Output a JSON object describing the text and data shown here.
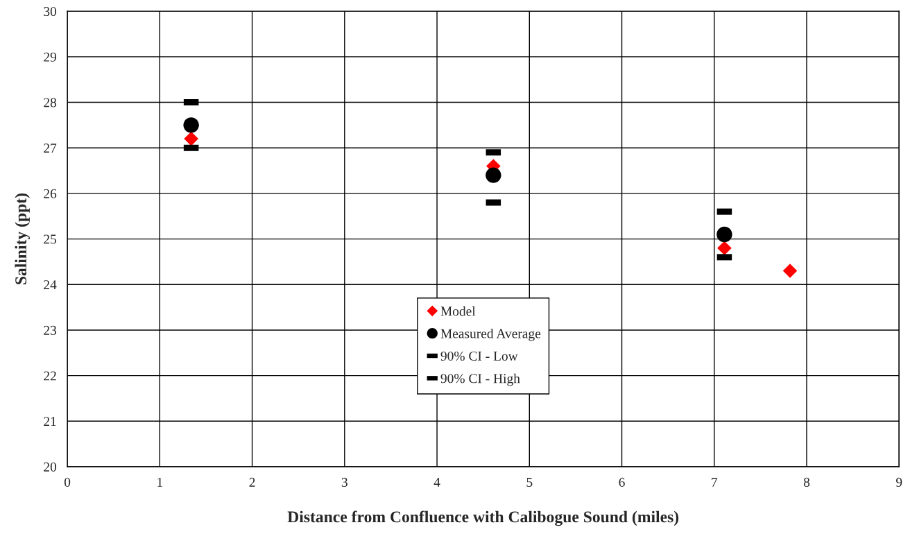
{
  "chart_data": {
    "type": "scatter",
    "xlabel": "Distance from Confluence with Calibogue Sound (miles)",
    "ylabel": "Salinity (ppt)",
    "xlim": [
      0,
      9
    ],
    "ylim": [
      20,
      30
    ],
    "xticks": [
      0,
      1,
      2,
      3,
      4,
      5,
      6,
      7,
      8,
      9
    ],
    "yticks": [
      20,
      21,
      22,
      23,
      24,
      25,
      26,
      27,
      28,
      29,
      30
    ],
    "grid": true,
    "legend": "bottom",
    "series": [
      {
        "name": "Model",
        "color": "#ff0000",
        "marker": "diamond",
        "x": [
          1.34,
          4.61,
          7.11,
          7.82
        ],
        "values": [
          27.2,
          26.6,
          24.8,
          24.3
        ]
      },
      {
        "name": "Measured Average",
        "color": "#000000",
        "marker": "circle",
        "x": [
          1.34,
          4.61,
          7.11
        ],
        "values": [
          27.5,
          26.4,
          25.1
        ]
      },
      {
        "name": "90% CI - Low",
        "color": "#000000",
        "marker": "square",
        "x": [
          1.34,
          4.61,
          7.11
        ],
        "values": [
          27.0,
          25.8,
          24.6
        ]
      },
      {
        "name": "90% CI - High",
        "color": "#000000",
        "marker": "square",
        "x": [
          1.34,
          4.61,
          7.11
        ],
        "values": [
          28.0,
          26.9,
          25.6
        ]
      }
    ]
  }
}
